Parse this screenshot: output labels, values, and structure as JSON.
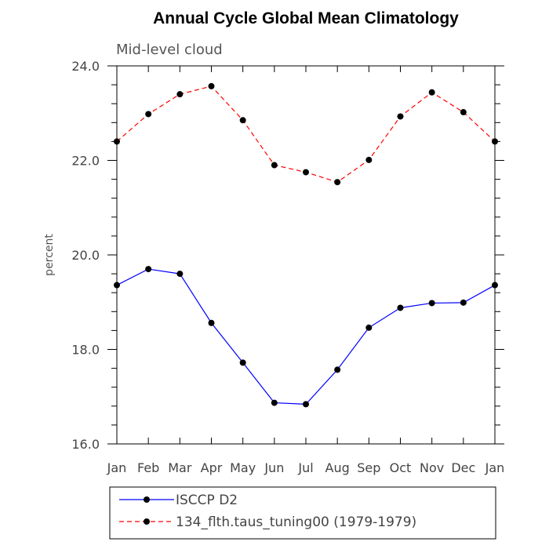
{
  "chart_data": {
    "type": "line",
    "title": "Annual Cycle Global Mean Climatology",
    "subtitle": "Mid-level cloud",
    "xlabel": "",
    "ylabel": "percent",
    "categories": [
      "Jan",
      "Feb",
      "Mar",
      "Apr",
      "May",
      "Jun",
      "Jul",
      "Aug",
      "Sep",
      "Oct",
      "Nov",
      "Dec",
      "Jan"
    ],
    "ylim": [
      16.0,
      24.0
    ],
    "yticks": [
      "16.0",
      "18.0",
      "20.0",
      "22.0",
      "24.0"
    ],
    "grid": false,
    "legend_position": "bottom",
    "series": [
      {
        "name": "ISCCP D2",
        "color": "#0000ff",
        "line_style": "solid",
        "marker": "filled-circle",
        "values": [
          19.36,
          19.7,
          19.6,
          18.56,
          17.72,
          16.87,
          16.84,
          17.57,
          18.46,
          18.88,
          18.98,
          18.99,
          19.36
        ]
      },
      {
        "name": "134_flth.taus_tuning00 (1979-1979)",
        "color": "#ff0000",
        "line_style": "dashed",
        "marker": "filled-circle",
        "values": [
          22.4,
          22.98,
          23.4,
          23.57,
          22.85,
          21.9,
          21.75,
          21.54,
          22.01,
          22.93,
          23.44,
          23.02,
          22.4
        ]
      }
    ]
  }
}
